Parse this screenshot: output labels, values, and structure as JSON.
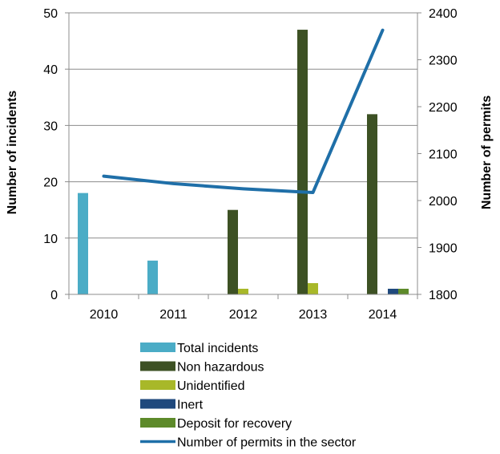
{
  "chart_data": {
    "type": "bar",
    "categories": [
      "2010",
      "2011",
      "2012",
      "2013",
      "2014"
    ],
    "series": [
      {
        "name": "Total incidents",
        "color": "#4bacc6",
        "values": [
          18,
          6,
          0,
          0,
          0
        ]
      },
      {
        "name": "Non hazardous",
        "color": "#3d5124",
        "values": [
          0,
          0,
          15,
          47,
          32
        ]
      },
      {
        "name": "Unidentified",
        "color": "#a8b829",
        "values": [
          0,
          0,
          1,
          2,
          0
        ]
      },
      {
        "name": "Inert",
        "color": "#1f497d",
        "values": [
          0,
          0,
          0,
          0,
          1
        ]
      },
      {
        "name": "Deposit for recovery",
        "color": "#5d8a2a",
        "values": [
          0,
          0,
          0,
          0,
          1
        ]
      }
    ],
    "line_series": {
      "name": "Number of permits in the sector",
      "color": "#1f6fa8",
      "axis": "right",
      "values": [
        2052,
        2036,
        2025,
        2017,
        2363
      ]
    },
    "ylabel": "Number of incidents",
    "ylim": [
      0,
      50
    ],
    "yticks": [
      "0",
      "10",
      "20",
      "30",
      "40",
      "50"
    ],
    "y2label": "Number of permits",
    "y2lim": [
      1800,
      2400
    ],
    "y2ticks": [
      "1800",
      "1900",
      "2000",
      "2100",
      "2200",
      "2300",
      "2400"
    ],
    "grid": true,
    "legend_position": "bottom"
  }
}
